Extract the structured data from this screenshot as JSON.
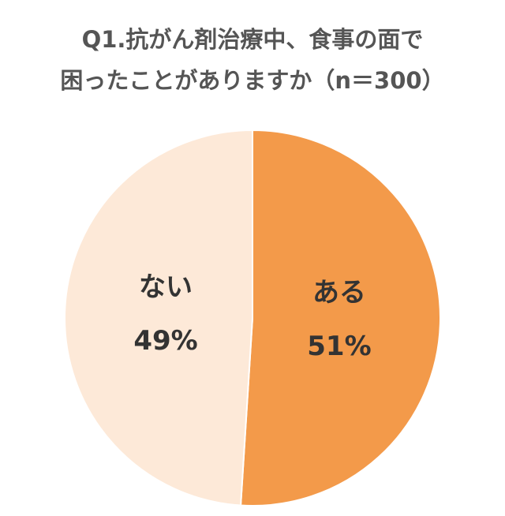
{
  "chart_data": {
    "type": "pie",
    "title": [
      "Q1.抗がん剤治療中、食事の面で",
      "困ったことがありますか（n＝300）"
    ],
    "categories": [
      "ある",
      "ない"
    ],
    "values": [
      51,
      49
    ],
    "value_labels": [
      "51%",
      "49%"
    ],
    "colors": [
      "#f39a4a",
      "#fde9d8"
    ]
  }
}
